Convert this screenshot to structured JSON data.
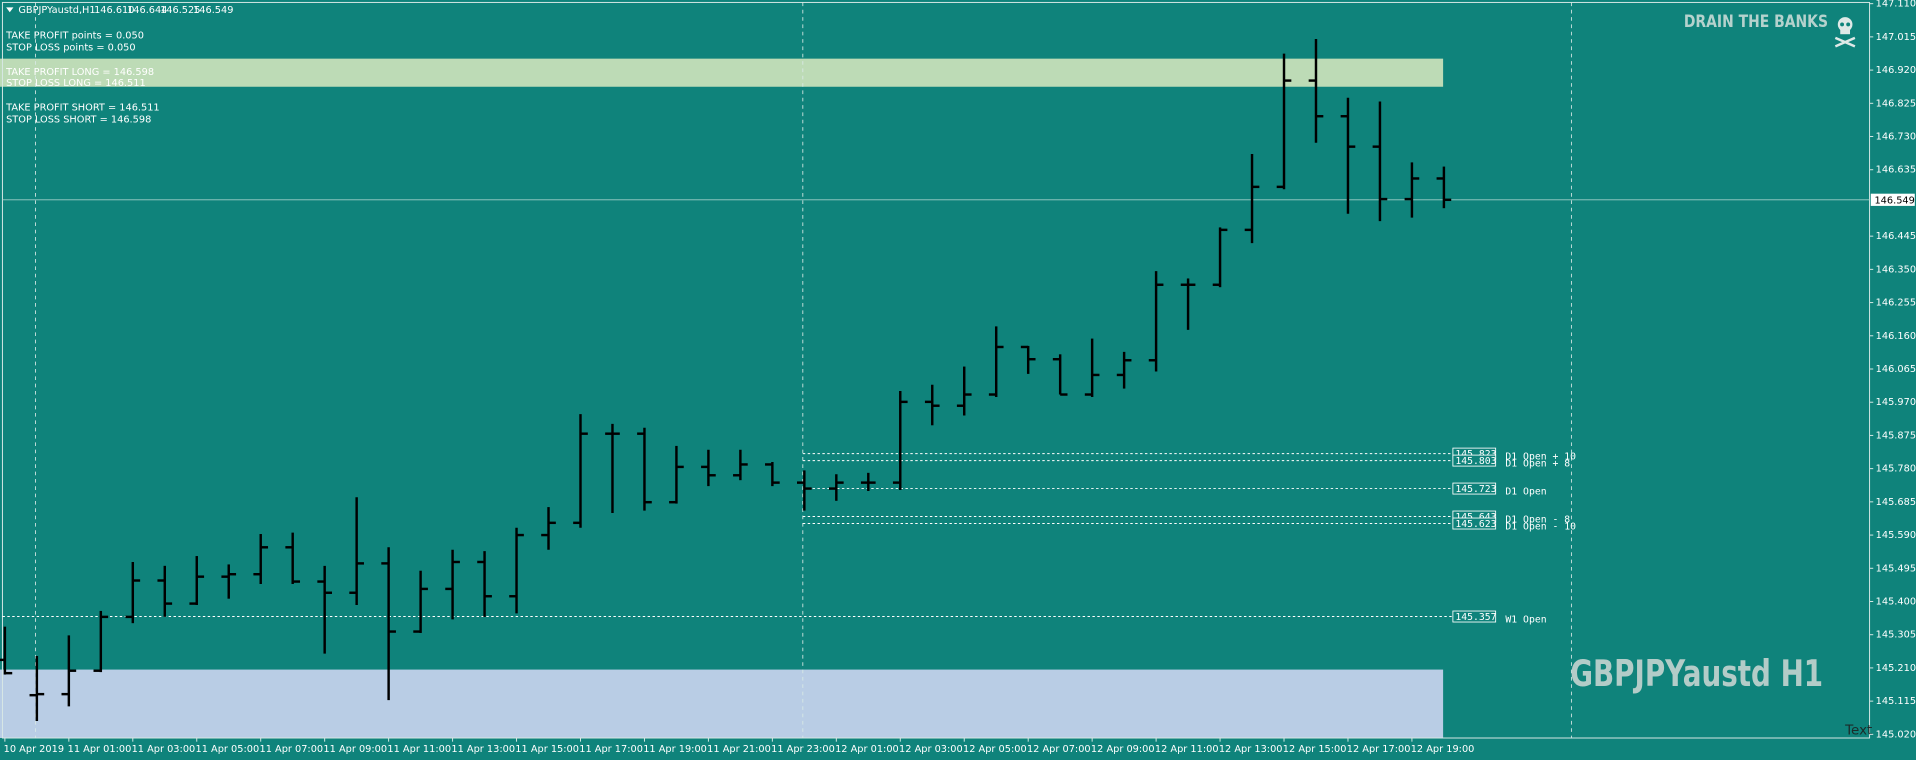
{
  "chart_data": {
    "type": "ohlc",
    "symbol": "GBPJPYaustd,H1",
    "header_ohlc": [
      "146.610",
      "146.644",
      "146.525",
      "146.549"
    ],
    "brand": "DRAIN THE BANKS",
    "watermark": "GBPJPYaustd H1",
    "corner_text": "Text",
    "annotations": [
      "TAKE PROFIT points = 0.050",
      "STOP LOSS points =   0.050",
      "TAKE PROFIT LONG = 146.598",
      "STOP LOSS LONG =   146.511",
      "TAKE PROFIT SHORT = 146.511",
      "STOP LOSS SHORT =   146.598"
    ],
    "background": "#0f837b",
    "bar_color": "#000000",
    "grid": false,
    "categories": [
      "10 Apr 2019",
      null,
      "11 Apr 01:00",
      null,
      "11 Apr 03:00",
      null,
      "11 Apr 05:00",
      null,
      "11 Apr 07:00",
      null,
      "11 Apr 09:00",
      null,
      "11 Apr 11:00",
      null,
      "11 Apr 13:00",
      null,
      "11 Apr 15:00",
      null,
      "11 Apr 17:00",
      null,
      "11 Apr 19:00",
      null,
      "11 Apr 21:00",
      null,
      "11 Apr 23:00",
      null,
      "12 Apr 01:00",
      null,
      "12 Apr 03:00",
      null,
      "12 Apr 05:00",
      null,
      "12 Apr 07:00",
      null,
      "12 Apr 09:00",
      null,
      "12 Apr 11:00",
      null,
      "12 Apr 13:00",
      null,
      "12 Apr 15:00",
      null,
      "12 Apr 17:00",
      null,
      "12 Apr 19:00",
      null
    ],
    "open": [
      145.233,
      145.132,
      145.135,
      145.202,
      145.356,
      145.46,
      145.394,
      145.471,
      145.478,
      145.555,
      145.457,
      145.425,
      145.509,
      145.314,
      145.436,
      145.513,
      145.415,
      145.59,
      145.625,
      145.88,
      145.88,
      145.684,
      145.785,
      145.761,
      145.792,
      145.74,
      145.723,
      145.74,
      145.74,
      145.971,
      145.96,
      145.992,
      146.128,
      146.093,
      145.992,
      146.048,
      146.09,
      146.306,
      146.306,
      146.463,
      146.586,
      146.89,
      146.788,
      146.701,
      146.551,
      146.61
    ],
    "high": [
      145.328,
      145.244,
      145.303,
      145.373,
      145.513,
      145.502,
      145.53,
      145.506,
      145.593,
      145.597,
      145.502,
      145.698,
      145.555,
      145.488,
      145.548,
      145.544,
      145.611,
      145.67,
      145.936,
      145.908,
      145.897,
      145.845,
      145.834,
      145.834,
      145.799,
      145.775,
      145.764,
      145.768,
      146.002,
      146.02,
      146.072,
      146.187,
      146.131,
      146.107,
      146.152,
      146.114,
      146.345,
      146.324,
      146.47,
      146.68,
      146.967,
      147.009,
      146.841,
      146.83,
      146.656,
      146.644
    ],
    "low": [
      145.191,
      145.058,
      145.1,
      145.198,
      145.338,
      145.356,
      145.39,
      145.408,
      145.45,
      145.45,
      145.251,
      145.39,
      145.118,
      145.31,
      145.349,
      145.356,
      145.366,
      145.548,
      145.611,
      145.653,
      145.66,
      145.68,
      145.73,
      145.747,
      145.73,
      145.66,
      145.688,
      145.716,
      145.719,
      145.904,
      145.932,
      145.985,
      146.051,
      145.992,
      145.985,
      146.009,
      146.058,
      146.177,
      146.299,
      146.425,
      146.579,
      146.712,
      146.509,
      146.488,
      146.498,
      146.525
    ],
    "close": [
      145.195,
      145.135,
      145.202,
      145.356,
      145.46,
      145.394,
      145.471,
      145.478,
      145.555,
      145.457,
      145.425,
      145.509,
      145.314,
      145.436,
      145.513,
      145.415,
      145.59,
      145.625,
      145.88,
      145.88,
      145.684,
      145.785,
      145.761,
      145.792,
      145.74,
      145.723,
      145.74,
      145.74,
      145.971,
      145.96,
      145.992,
      146.128,
      146.093,
      145.992,
      146.048,
      146.09,
      146.306,
      146.306,
      146.463,
      146.586,
      146.89,
      146.788,
      146.701,
      146.551,
      146.61,
      146.549
    ],
    "levels": [
      {
        "name": "D1 Open + 10",
        "value": 145.823
      },
      {
        "name": "D1 Open + 8",
        "value": 145.803
      },
      {
        "name": "D1 Open",
        "value": 145.723
      },
      {
        "name": "D1 Open - 8",
        "value": 145.643
      },
      {
        "name": "D1 Open - 10",
        "value": 145.623
      },
      {
        "name": "W1 Open",
        "value": 145.357
      }
    ],
    "ylim": [
      145.02,
      147.11
    ],
    "yticks": [
      {
        "value": 147.11,
        "label": "147.110"
      },
      147.015,
      {
        "value": 146.92,
        "label": "146.920"
      },
      146.825,
      {
        "value": 146.73,
        "label": "146.730"
      },
      146.635,
      146.445,
      {
        "value": 146.35,
        "label": "146.350"
      },
      146.255,
      {
        "value": 146.16,
        "label": "146.160"
      },
      146.065,
      {
        "value": 145.97,
        "label": "145.970"
      },
      145.875,
      {
        "value": 145.78,
        "label": "145.780"
      },
      145.685,
      {
        "value": 145.59,
        "label": "145.590"
      },
      145.495,
      {
        "value": 145.4,
        "label": "145.400"
      },
      145.305,
      {
        "value": 145.21,
        "label": "145.210"
      },
      145.115,
      {
        "value": 145.02,
        "label": "145.020"
      }
    ]
  }
}
